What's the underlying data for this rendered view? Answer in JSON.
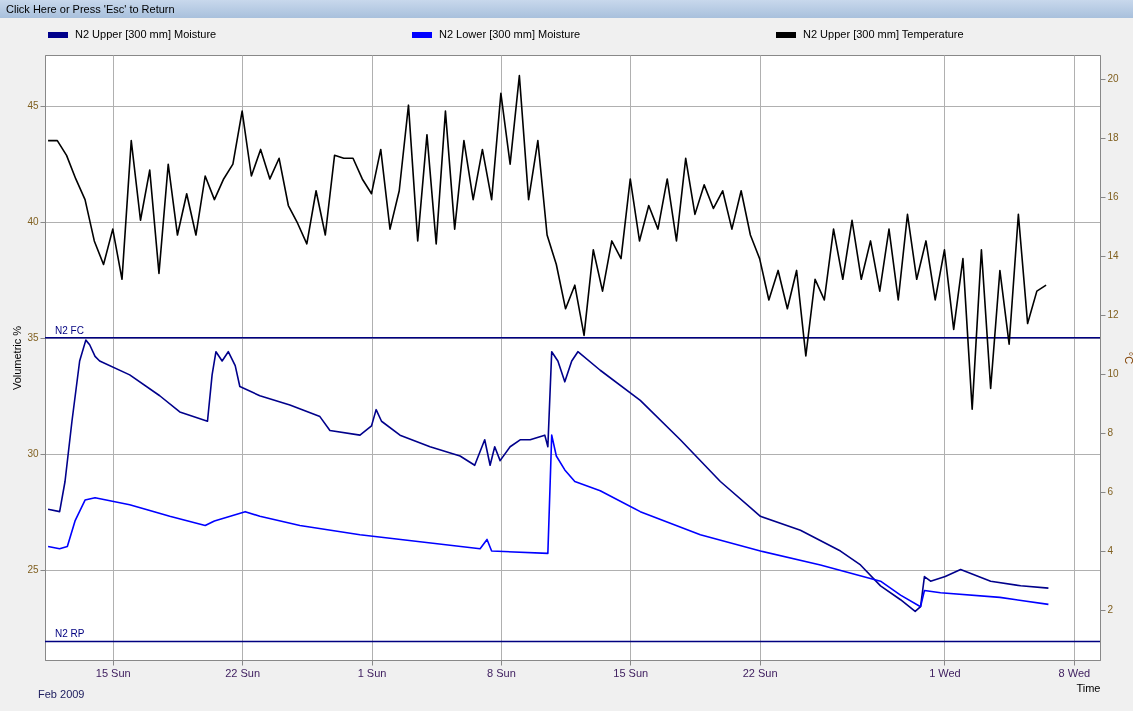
{
  "chart_data": {
    "type": "line",
    "xlabel": "Time",
    "ylabel": "Volumetric %",
    "y2label": "°C",
    "annotations": [
      "Click Here or Press 'Esc' to Return",
      "Feb 2009"
    ],
    "xlim": [
      "2009-02-11T08:00",
      "2009-04-09T10:00"
    ],
    "xticks": [
      {
        "value": "2009-02-15",
        "label": "15 Sun"
      },
      {
        "value": "2009-02-22",
        "label": "22 Sun"
      },
      {
        "value": "2009-03-01",
        "label": "1 Sun"
      },
      {
        "value": "2009-03-08",
        "label": "8 Sun"
      },
      {
        "value": "2009-03-15",
        "label": "15 Sun"
      },
      {
        "value": "2009-03-22",
        "label": "22 Sun"
      },
      {
        "value": "2009-04-01",
        "label": "1 Wed"
      },
      {
        "value": "2009-04-08",
        "label": "8 Wed"
      }
    ],
    "ylim": [
      21.1,
      47.2
    ],
    "yticks": [
      25,
      30,
      35,
      40,
      45
    ],
    "y2lim": [
      0.3,
      20.8
    ],
    "y2ticks": [
      2,
      4,
      6,
      8,
      10,
      12,
      14,
      16,
      18,
      20
    ],
    "grid": true,
    "legend": "top",
    "ref_lines": [
      {
        "axis": "y",
        "value": 35,
        "label": "N2 FC",
        "color": "#000080"
      },
      {
        "axis": "y",
        "value": 21.9,
        "label": "N2 RP",
        "color": "#000080"
      }
    ],
    "series": [
      {
        "name": "N2 Upper  [300 mm] Moisture",
        "color": "#00008b",
        "x": [
          "2009-02-11T12:00",
          "2009-02-12T03:00",
          "2009-02-12T10:00",
          "2009-02-12T19:00",
          "2009-02-13T05:00",
          "2009-02-13T13:00",
          "2009-02-13T18:00",
          "2009-02-14T01:00",
          "2009-02-14T07:00",
          "2009-02-15T22:00",
          "2009-02-17T13:00",
          "2009-02-18T15:00",
          "2009-02-20T03:00",
          "2009-02-20T09:00",
          "2009-02-20T14:00",
          "2009-02-20T22:00",
          "2009-02-21T06:00",
          "2009-02-21T15:00",
          "2009-02-21T21:00",
          "2009-02-22T23:00",
          "2009-02-24T14:00",
          "2009-02-26T05:00",
          "2009-02-26T18:00",
          "2009-02-28T09:00",
          "2009-03-01T00:00",
          "2009-03-01T06:00",
          "2009-03-01T13:00",
          "2009-03-02T13:00",
          "2009-03-04T04:00",
          "2009-03-05T19:00",
          "2009-03-06T14:00",
          "2009-03-07T03:00",
          "2009-03-07T10:00",
          "2009-03-07T16:00",
          "2009-03-07T23:00",
          "2009-03-08T12:00",
          "2009-03-09T01:00",
          "2009-03-09T14:00",
          "2009-03-10T09:00",
          "2009-03-10T13:00",
          "2009-03-10T18:00",
          "2009-03-11T02:00",
          "2009-03-11T11:00",
          "2009-03-11T20:00",
          "2009-03-12T04:00",
          "2009-03-13T09:00",
          "2009-03-15T13:00",
          "2009-03-17T17:00",
          "2009-03-19T21:00",
          "2009-03-22T01:00",
          "2009-03-24T05:00",
          "2009-03-26T09:00",
          "2009-03-27T11:00",
          "2009-03-28T13:00",
          "2009-03-29T15:00",
          "2009-03-30T10:00",
          "2009-03-30T17:00",
          "2009-03-30T22:00",
          "2009-03-31T06:00",
          "2009-04-01T01:00",
          "2009-04-01T21:00",
          "2009-04-03T12:00",
          "2009-04-05T03:00",
          "2009-04-06T15:00"
        ],
        "values": [
          27.6,
          27.5,
          28.8,
          31.4,
          34.0,
          34.9,
          34.7,
          34.2,
          34.0,
          33.4,
          32.5,
          31.8,
          31.4,
          33.4,
          34.4,
          34.0,
          34.4,
          33.8,
          32.9,
          32.5,
          32.1,
          31.6,
          31.0,
          30.8,
          31.2,
          31.9,
          31.4,
          30.8,
          30.3,
          29.9,
          29.5,
          30.6,
          29.5,
          30.3,
          29.7,
          30.3,
          30.6,
          30.6,
          30.8,
          30.3,
          34.4,
          34.0,
          33.1,
          34.0,
          34.4,
          33.6,
          32.3,
          30.6,
          28.8,
          27.3,
          26.7,
          25.8,
          25.2,
          24.3,
          23.7,
          23.2,
          23.4,
          24.7,
          24.5,
          24.7,
          25.0,
          24.5,
          24.3,
          24.2
        ]
      },
      {
        "name": "N2 Lower  [300 mm] Moisture",
        "color": "#0000ff",
        "x": [
          "2009-02-11T12:00",
          "2009-02-12T03:00",
          "2009-02-12T13:00",
          "2009-02-12T23:00",
          "2009-02-13T12:00",
          "2009-02-14T01:00",
          "2009-02-15T22:00",
          "2009-02-18T02:00",
          "2009-02-20T00:00",
          "2009-02-20T12:00",
          "2009-02-22T04:00",
          "2009-02-22T23:00",
          "2009-02-25T03:00",
          "2009-02-28T09:00",
          "2009-03-03T15:00",
          "2009-03-06T21:00",
          "2009-03-07T06:00",
          "2009-03-07T12:00",
          "2009-03-10T13:00",
          "2009-03-10T18:00",
          "2009-03-11T00:00",
          "2009-03-11T11:00",
          "2009-03-12T00:00",
          "2009-03-13T09:00",
          "2009-03-15T13:00",
          "2009-03-18T19:00",
          "2009-03-22T01:00",
          "2009-03-25T07:00",
          "2009-03-28T13:00",
          "2009-03-29T15:00",
          "2009-03-30T17:00",
          "2009-03-30T22:00",
          "2009-03-31T19:00",
          "2009-04-04T00:00",
          "2009-04-06T15:00"
        ],
        "values": [
          26.0,
          25.9,
          26.0,
          27.1,
          28.0,
          28.1,
          27.8,
          27.3,
          26.9,
          27.1,
          27.5,
          27.3,
          26.9,
          26.5,
          26.2,
          25.9,
          26.3,
          25.8,
          25.7,
          30.8,
          29.9,
          29.3,
          28.8,
          28.4,
          27.5,
          26.5,
          25.8,
          25.2,
          24.5,
          23.9,
          23.4,
          24.1,
          24.0,
          23.8,
          23.5
        ]
      },
      {
        "name": "N2 Upper  [300 mm] Temperature",
        "color": "#000000",
        "axis": "y2",
        "x": [
          "2009-02-11T12:00",
          "2009-02-12T00:00",
          "2009-02-12T12:00",
          "2009-02-13T00:00",
          "2009-02-13T12:00",
          "2009-02-14T00:00",
          "2009-02-14T12:00",
          "2009-02-15T00:00",
          "2009-02-15T12:00",
          "2009-02-16T00:00",
          "2009-02-16T12:00",
          "2009-02-17T00:00",
          "2009-02-17T12:00",
          "2009-02-18T00:00",
          "2009-02-18T12:00",
          "2009-02-19T00:00",
          "2009-02-19T12:00",
          "2009-02-20T00:00",
          "2009-02-20T12:00",
          "2009-02-21T00:00",
          "2009-02-21T12:00",
          "2009-02-22T00:00",
          "2009-02-22T12:00",
          "2009-02-23T00:00",
          "2009-02-23T12:00",
          "2009-02-24T00:00",
          "2009-02-24T12:00",
          "2009-02-25T00:00",
          "2009-02-25T12:00",
          "2009-02-26T00:00",
          "2009-02-26T12:00",
          "2009-02-27T00:00",
          "2009-02-27T12:00",
          "2009-02-28T00:00",
          "2009-02-28T12:00",
          "2009-03-01T00:00",
          "2009-03-01T12:00",
          "2009-03-02T00:00",
          "2009-03-02T12:00",
          "2009-03-03T00:00",
          "2009-03-03T12:00",
          "2009-03-04T00:00",
          "2009-03-04T12:00",
          "2009-03-05T00:00",
          "2009-03-05T12:00",
          "2009-03-06T00:00",
          "2009-03-06T12:00",
          "2009-03-07T00:00",
          "2009-03-07T12:00",
          "2009-03-08T00:00",
          "2009-03-08T12:00",
          "2009-03-09T00:00",
          "2009-03-09T12:00",
          "2009-03-10T00:00",
          "2009-03-10T12:00",
          "2009-03-11T00:00",
          "2009-03-11T12:00",
          "2009-03-12T00:00",
          "2009-03-12T12:00",
          "2009-03-13T00:00",
          "2009-03-13T12:00",
          "2009-03-14T00:00",
          "2009-03-14T12:00",
          "2009-03-15T00:00",
          "2009-03-15T12:00",
          "2009-03-16T00:00",
          "2009-03-16T12:00",
          "2009-03-17T00:00",
          "2009-03-17T12:00",
          "2009-03-18T00:00",
          "2009-03-18T12:00",
          "2009-03-19T00:00",
          "2009-03-19T12:00",
          "2009-03-20T00:00",
          "2009-03-20T12:00",
          "2009-03-21T00:00",
          "2009-03-21T12:00",
          "2009-03-22T00:00",
          "2009-03-22T12:00",
          "2009-03-23T00:00",
          "2009-03-23T12:00",
          "2009-03-24T00:00",
          "2009-03-24T12:00",
          "2009-03-25T00:00",
          "2009-03-25T12:00",
          "2009-03-26T00:00",
          "2009-03-26T12:00",
          "2009-03-27T00:00",
          "2009-03-27T12:00",
          "2009-03-28T00:00",
          "2009-03-28T12:00",
          "2009-03-29T00:00",
          "2009-03-29T12:00",
          "2009-03-30T00:00",
          "2009-03-30T12:00",
          "2009-03-31T00:00",
          "2009-03-31T12:00",
          "2009-04-01T00:00",
          "2009-04-01T12:00",
          "2009-04-02T00:00",
          "2009-04-02T12:00",
          "2009-04-03T00:00",
          "2009-04-03T12:00",
          "2009-04-04T00:00",
          "2009-04-04T12:00",
          "2009-04-05T00:00",
          "2009-04-05T12:00",
          "2009-04-06T00:00",
          "2009-04-06T12:00"
        ],
        "values": [
          17.9,
          17.9,
          17.4,
          16.6,
          15.9,
          14.5,
          13.7,
          14.9,
          13.2,
          17.9,
          15.2,
          16.9,
          13.4,
          17.1,
          14.7,
          16.1,
          14.7,
          16.7,
          15.9,
          16.6,
          17.1,
          18.9,
          16.7,
          17.6,
          16.6,
          17.3,
          15.7,
          15.1,
          14.4,
          16.2,
          14.7,
          17.4,
          17.3,
          17.3,
          16.6,
          16.1,
          17.6,
          14.9,
          16.2,
          19.1,
          14.5,
          18.1,
          14.4,
          18.9,
          14.9,
          17.9,
          15.9,
          17.6,
          15.9,
          19.5,
          17.1,
          20.1,
          15.9,
          17.9,
          14.7,
          13.7,
          12.2,
          13.0,
          11.3,
          14.2,
          12.8,
          14.5,
          13.9,
          16.6,
          14.5,
          15.7,
          14.9,
          16.6,
          14.5,
          17.3,
          15.4,
          16.4,
          15.6,
          16.2,
          14.9,
          16.2,
          14.7,
          13.9,
          12.5,
          13.5,
          12.2,
          13.5,
          10.6,
          13.2,
          12.5,
          14.9,
          13.2,
          15.2,
          13.2,
          14.5,
          12.8,
          14.9,
          12.5,
          15.4,
          13.2,
          14.5,
          12.5,
          14.2,
          11.5,
          13.9,
          8.8,
          14.2,
          9.5,
          13.5,
          11.0,
          15.4,
          11.7,
          12.8,
          13.0
        ]
      }
    ]
  }
}
